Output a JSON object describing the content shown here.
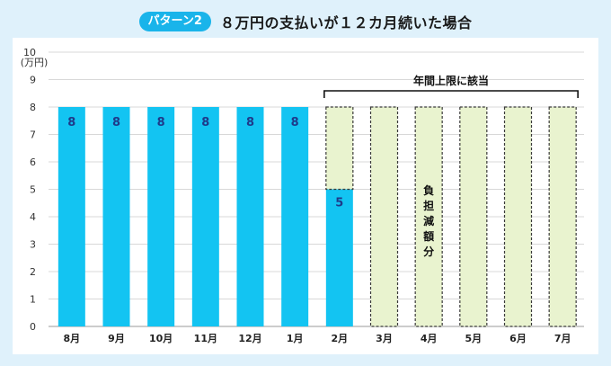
{
  "header": {
    "badge": "パターン2",
    "title": "８万円の支払いが１２カ月続いた場合"
  },
  "colors": {
    "paid": "#13c4f2",
    "reduced_fill": "#e9f3cf",
    "reduced_stroke": "#3a3a3a"
  },
  "chart_data": {
    "type": "bar",
    "title": "８万円の支払いが１２カ月続いた場合",
    "ylabel": "(万円)",
    "ylim": [
      0,
      10
    ],
    "yticks": [
      0,
      1,
      2,
      3,
      4,
      5,
      6,
      7,
      8,
      9,
      10
    ],
    "categories": [
      "8月",
      "9月",
      "10月",
      "11月",
      "12月",
      "1月",
      "2月",
      "3月",
      "4月",
      "5月",
      "6月",
      "7月"
    ],
    "series": [
      {
        "name": "",
        "values": [
          8,
          8,
          8,
          8,
          8,
          8,
          5,
          0,
          0,
          0,
          0,
          0
        ]
      },
      {
        "name": "",
        "values": [
          0,
          0,
          0,
          0,
          0,
          0,
          3,
          8,
          8,
          8,
          8,
          8
        ]
      }
    ],
    "data_labels": [
      "8",
      "8",
      "8",
      "8",
      "8",
      "8",
      "5",
      "",
      "",
      "",
      "",
      ""
    ],
    "bracket_label": "年間上限に該当",
    "reduction_label": "負担減額分",
    "grid": true
  }
}
